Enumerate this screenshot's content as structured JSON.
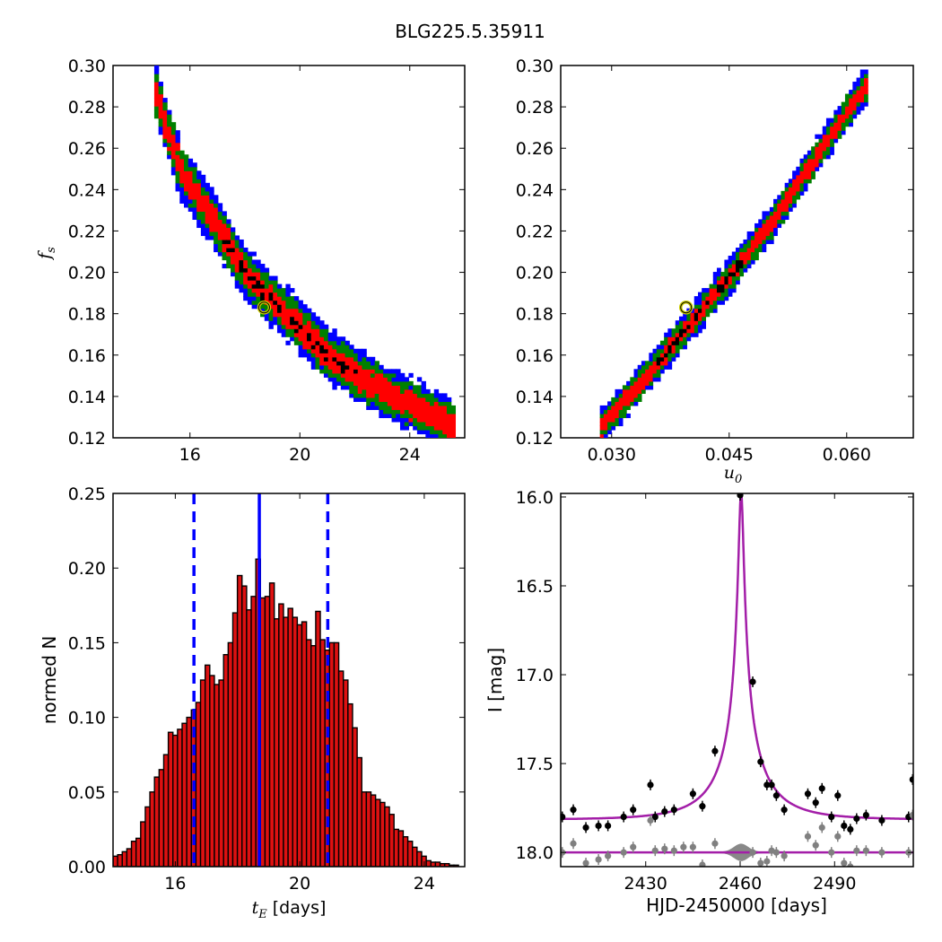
{
  "figure_title": "BLG225.5.35911",
  "colors": {
    "blue": "#0000ff",
    "green": "#008000",
    "red": "#ff0000",
    "black": "#000000",
    "hist_fill": "#dd1111",
    "model": "#a31ea8",
    "data_points": "#000000",
    "residual_points": "#808080",
    "marker_edge": "#cccc00"
  },
  "chart_data": [
    {
      "id": "fs_vs_tE",
      "type": "heatmap",
      "xlabel": "",
      "ylabel": "f_s",
      "xlim": [
        13.2,
        26.0
      ],
      "ylim": [
        0.12,
        0.3
      ],
      "xticks": [
        16,
        20,
        24
      ],
      "yticks": [
        0.12,
        0.14,
        0.16,
        0.18,
        0.2,
        0.22,
        0.24,
        0.26,
        0.28,
        0.3
      ],
      "xtick_labels": [
        "16",
        "20",
        "24"
      ],
      "ytick_labels": [
        "0.12",
        "0.14",
        "0.16",
        "0.18",
        "0.20",
        "0.22",
        "0.24",
        "0.26",
        "0.28",
        "0.30"
      ],
      "ridge": [
        [
          14.7,
          0.285
        ],
        [
          15.6,
          0.248
        ],
        [
          16.9,
          0.222
        ],
        [
          17.9,
          0.2
        ],
        [
          18.7,
          0.188
        ],
        [
          19.7,
          0.176
        ],
        [
          20.7,
          0.162
        ],
        [
          21.9,
          0.15
        ],
        [
          23.1,
          0.141
        ],
        [
          24.3,
          0.133
        ],
        [
          25.5,
          0.125
        ]
      ],
      "half_widths": {
        "blue": 0.0125,
        "green": 0.0095,
        "red": 0.0058,
        "black": 0.0022
      },
      "black_range": [
        0.15,
        0.215
      ],
      "best_fit": [
        18.7,
        0.183
      ],
      "grid": false
    },
    {
      "id": "fs_vs_u0",
      "type": "heatmap",
      "xlabel": "u_0",
      "ylabel": "",
      "xlim": [
        0.0235,
        0.0685
      ],
      "ylim": [
        0.12,
        0.3
      ],
      "xticks": [
        0.03,
        0.045,
        0.06
      ],
      "yticks": [
        0.12,
        0.14,
        0.16,
        0.18,
        0.2,
        0.22,
        0.24,
        0.26,
        0.28,
        0.3
      ],
      "xtick_labels": [
        "0.030",
        "0.045",
        "0.060"
      ],
      "ytick_labels": [
        "0.12",
        "0.14",
        "0.16",
        "0.18",
        "0.20",
        "0.22",
        "0.24",
        "0.26",
        "0.28",
        "0.30"
      ],
      "ridge": [
        [
          0.0285,
          0.125
        ],
        [
          0.0345,
          0.15
        ],
        [
          0.04,
          0.175
        ],
        [
          0.045,
          0.198
        ],
        [
          0.05,
          0.222
        ],
        [
          0.055,
          0.25
        ],
        [
          0.06,
          0.278
        ],
        [
          0.0622,
          0.289
        ]
      ],
      "half_widths": {
        "blue": 0.0085,
        "green": 0.0062,
        "red": 0.0037,
        "black": 0.0014
      },
      "black_range": [
        0.155,
        0.205
      ],
      "best_fit": [
        0.0395,
        0.183
      ],
      "grid": false
    },
    {
      "id": "tE_histogram",
      "type": "bar",
      "xlabel": "t_E [days]",
      "ylabel": "normed N",
      "xlim": [
        14.0,
        25.3
      ],
      "ylim": [
        0.0,
        0.25
      ],
      "xticks": [
        16,
        20,
        24
      ],
      "yticks": [
        0.0,
        0.05,
        0.1,
        0.15,
        0.2,
        0.25
      ],
      "xtick_labels": [
        "16",
        "20",
        "24"
      ],
      "ytick_labels": [
        "0.00",
        "0.05",
        "0.10",
        "0.15",
        "0.20",
        "0.25"
      ],
      "bin_start": 14.0,
      "bin_width": 0.148,
      "values": [
        0.007,
        0.008,
        0.01,
        0.012,
        0.017,
        0.019,
        0.03,
        0.04,
        0.05,
        0.06,
        0.065,
        0.075,
        0.09,
        0.088,
        0.092,
        0.096,
        0.1,
        0.105,
        0.11,
        0.125,
        0.135,
        0.128,
        0.122,
        0.125,
        0.142,
        0.15,
        0.17,
        0.195,
        0.188,
        0.172,
        0.181,
        0.206,
        0.18,
        0.181,
        0.19,
        0.166,
        0.176,
        0.167,
        0.173,
        0.167,
        0.162,
        0.164,
        0.152,
        0.148,
        0.171,
        0.152,
        0.145,
        0.15,
        0.15,
        0.131,
        0.125,
        0.109,
        0.093,
        0.073,
        0.05,
        0.05,
        0.048,
        0.045,
        0.043,
        0.04,
        0.035,
        0.025,
        0.024,
        0.02,
        0.017,
        0.013,
        0.01,
        0.007,
        0.004,
        0.003,
        0.003,
        0.002,
        0.002,
        0.001,
        0.001
      ],
      "vlines": [
        {
          "x": 18.7,
          "style": "solid"
        },
        {
          "x": 16.6,
          "style": "dashed"
        },
        {
          "x": 20.9,
          "style": "dashed"
        }
      ],
      "grid": false
    },
    {
      "id": "light_curve",
      "type": "scatter",
      "xlabel": "HJD-2450000 [days]",
      "ylabel": "I [mag]",
      "xlim": [
        2403,
        2515
      ],
      "ylim": [
        18.08,
        15.98
      ],
      "inverted_y": true,
      "xticks": [
        2430,
        2460,
        2490
      ],
      "yticks": [
        16.0,
        16.5,
        17.0,
        17.5,
        18.0
      ],
      "xtick_labels": [
        "2430",
        "2460",
        "2490"
      ],
      "ytick_labels": [
        "16.0",
        "16.5",
        "17.0",
        "17.5",
        "18.0"
      ],
      "model": {
        "t0": 2460.3,
        "tE": 18.7,
        "u0": 0.0395,
        "fs": 0.183,
        "I_base": 17.815
      },
      "residual_baseline": 18.0,
      "series": [
        {
          "name": "",
          "x": [
            2403.5,
            2407,
            2411,
            2415,
            2418,
            2423,
            2426,
            2431.5,
            2433,
            2436,
            2439,
            2445,
            2448,
            2452,
            2460,
            2464,
            2466.5,
            2468.5,
            2470,
            2471.5,
            2474,
            2481.5,
            2484,
            2486,
            2489,
            2491,
            2493,
            2495,
            2497,
            2500,
            2505,
            2513.5,
            2514.8
          ],
          "y": [
            17.8,
            17.76,
            17.86,
            17.85,
            17.85,
            17.8,
            17.76,
            17.62,
            17.8,
            17.77,
            17.76,
            17.67,
            17.74,
            17.43,
            15.99,
            17.04,
            17.49,
            17.62,
            17.62,
            17.68,
            17.76,
            17.67,
            17.72,
            17.64,
            17.8,
            17.68,
            17.85,
            17.87,
            17.81,
            17.79,
            17.82,
            17.8,
            17.59
          ]
        },
        {
          "name": "",
          "x": [
            2403.5,
            2407,
            2411,
            2415,
            2418,
            2423,
            2426,
            2431.5,
            2433,
            2436,
            2439,
            2442,
            2445,
            2448,
            2452,
            2464,
            2466.5,
            2468.5,
            2470,
            2471.5,
            2474,
            2481.5,
            2484,
            2486,
            2489,
            2491,
            2493,
            2495,
            2497,
            2500,
            2505,
            2513.5,
            2514.8
          ],
          "y": [
            18.0,
            17.95,
            18.06,
            18.04,
            18.02,
            18.0,
            17.97,
            17.82,
            17.99,
            17.98,
            17.99,
            17.97,
            17.97,
            18.07,
            17.95,
            18.0,
            18.06,
            18.05,
            17.99,
            18.0,
            18.02,
            17.91,
            17.96,
            17.86,
            18.0,
            17.91,
            18.06,
            18.08,
            17.99,
            17.99,
            18.0,
            18.0,
            17.79
          ]
        }
      ],
      "grid": false
    }
  ]
}
